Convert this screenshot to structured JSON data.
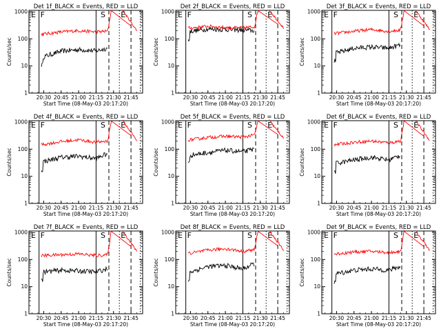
{
  "figure": {
    "title_suffix": "_BLACK = Events, RED = LLD",
    "xlabel": "Start Time (08-May-03 20:17:20)",
    "ylabel": "Counts/sec",
    "x_tick_labels": [
      "20:30",
      "20:45",
      "21:00",
      "21:15",
      "21:30",
      "21:45"
    ],
    "y_tick_labels": [
      "1",
      "10",
      "100",
      "1000"
    ],
    "markers": [
      "E",
      "F",
      "S",
      "E"
    ],
    "colors": {
      "events": "#000000",
      "lld": "#ff0000"
    }
  },
  "chart_data": [
    {
      "type": "line",
      "title": "Det 1f_BLACK = Events, RED = LLD",
      "ylabel": "Counts/sec",
      "xlabel": "Start Time (08-May-03 20:17:20)",
      "y_scale": "log",
      "ylim": [
        1,
        1000
      ],
      "series": [
        {
          "name": "Events",
          "color": "#000000",
          "x": [
            "20:30",
            "20:45",
            "21:00",
            "21:15",
            "21:25"
          ],
          "values": [
            22,
            35,
            40,
            36,
            45
          ]
        },
        {
          "name": "LLD",
          "color": "#ff0000",
          "x": [
            "20:30",
            "20:45",
            "21:00",
            "21:15",
            "21:25",
            "21:28",
            "21:45",
            "21:50"
          ],
          "values": [
            150,
            180,
            200,
            180,
            190,
            1100,
            300,
            200
          ]
        }
      ]
    },
    {
      "type": "line",
      "title": "Det 2f_BLACK = Events, RED = LLD",
      "ylabel": "Counts/sec",
      "xlabel": "Start Time (08-May-03 20:17:20)",
      "y_scale": "log",
      "ylim": [
        1,
        1000
      ],
      "series": [
        {
          "name": "Events",
          "color": "#000000",
          "x": [
            "20:30",
            "20:45",
            "21:00",
            "21:15",
            "21:25"
          ],
          "values": [
            190,
            230,
            220,
            210,
            200
          ]
        },
        {
          "name": "LLD",
          "color": "#ff0000",
          "x": [
            "20:30",
            "20:45",
            "21:00",
            "21:15",
            "21:25",
            "21:28",
            "21:45",
            "21:50"
          ],
          "values": [
            250,
            290,
            260,
            250,
            280,
            1100,
            350,
            250
          ]
        }
      ]
    },
    {
      "type": "line",
      "title": "Det 3f_BLACK = Events, RED = LLD",
      "ylabel": "Counts/sec",
      "xlabel": "Start Time (08-May-03 20:17:20)",
      "y_scale": "log",
      "ylim": [
        1,
        1000
      ],
      "series": [
        {
          "name": "Events",
          "color": "#000000",
          "x": [
            "20:30",
            "20:45",
            "21:00",
            "21:15",
            "21:25"
          ],
          "values": [
            30,
            45,
            50,
            45,
            60
          ]
        },
        {
          "name": "LLD",
          "color": "#ff0000",
          "x": [
            "20:30",
            "20:45",
            "21:00",
            "21:15",
            "21:25",
            "21:28",
            "21:45",
            "21:50"
          ],
          "values": [
            160,
            190,
            220,
            190,
            210,
            1100,
            300,
            220
          ]
        }
      ]
    },
    {
      "type": "line",
      "title": "Det 4f_BLACK = Events, RED = LLD",
      "ylabel": "Counts/sec",
      "xlabel": "Start Time (08-May-03 20:17:20)",
      "y_scale": "log",
      "ylim": [
        1,
        1000
      ],
      "series": [
        {
          "name": "Events",
          "color": "#000000",
          "x": [
            "20:30",
            "20:45",
            "21:00",
            "21:15",
            "21:25"
          ],
          "values": [
            35,
            50,
            55,
            45,
            70
          ]
        },
        {
          "name": "LLD",
          "color": "#ff0000",
          "x": [
            "20:30",
            "20:45",
            "21:00",
            "21:15",
            "21:25",
            "21:28",
            "21:45",
            "21:50"
          ],
          "values": [
            150,
            190,
            220,
            180,
            200,
            1100,
            320,
            210
          ]
        }
      ]
    },
    {
      "type": "line",
      "title": "Det 5f_BLACK = Events, RED = LLD",
      "ylabel": "Counts/sec",
      "xlabel": "Start Time (08-May-03 20:17:20)",
      "y_scale": "log",
      "ylim": [
        1,
        1000
      ],
      "series": [
        {
          "name": "Events",
          "color": "#000000",
          "x": [
            "20:30",
            "20:45",
            "21:00",
            "21:15",
            "21:25"
          ],
          "values": [
            60,
            75,
            90,
            80,
            100
          ]
        },
        {
          "name": "LLD",
          "color": "#ff0000",
          "x": [
            "20:30",
            "20:45",
            "21:00",
            "21:15",
            "21:25",
            "21:28",
            "21:45",
            "21:50"
          ],
          "values": [
            220,
            270,
            300,
            280,
            330,
            1100,
            350,
            250
          ]
        }
      ]
    },
    {
      "type": "line",
      "title": "Det 6f_BLACK = Events, RED = LLD",
      "ylabel": "Counts/sec",
      "xlabel": "Start Time (08-May-03 20:17:20)",
      "y_scale": "log",
      "ylim": [
        1,
        1000
      ],
      "series": [
        {
          "name": "Events",
          "color": "#000000",
          "x": [
            "20:30",
            "20:45",
            "21:00",
            "21:15",
            "21:25"
          ],
          "values": [
            30,
            40,
            50,
            40,
            60
          ]
        },
        {
          "name": "LLD",
          "color": "#ff0000",
          "x": [
            "20:30",
            "20:45",
            "21:00",
            "21:15",
            "21:25",
            "21:28",
            "21:45",
            "21:50"
          ],
          "values": [
            150,
            180,
            200,
            170,
            200,
            1100,
            300,
            210
          ]
        }
      ]
    },
    {
      "type": "line",
      "title": "Det 7f_BLACK = Events, RED = LLD",
      "ylabel": "Counts/sec",
      "xlabel": "Start Time (08-May-03 20:17:20)",
      "y_scale": "log",
      "ylim": [
        1,
        1000
      ],
      "series": [
        {
          "name": "Events",
          "color": "#000000",
          "x": [
            "20:30",
            "20:45",
            "21:00",
            "21:15",
            "21:25"
          ],
          "values": [
            35,
            40,
            38,
            35,
            45
          ]
        },
        {
          "name": "LLD",
          "color": "#ff0000",
          "x": [
            "20:30",
            "20:45",
            "21:00",
            "21:15",
            "21:25",
            "21:28",
            "21:45",
            "21:50"
          ],
          "values": [
            140,
            150,
            160,
            140,
            150,
            1100,
            300,
            200
          ]
        }
      ]
    },
    {
      "type": "line",
      "title": "Det 8f_BLACK = Events, RED = LLD",
      "ylabel": "Counts/sec",
      "xlabel": "Start Time (08-May-03 20:17:20)",
      "y_scale": "log",
      "ylim": [
        1,
        1000
      ],
      "series": [
        {
          "name": "Events",
          "color": "#000000",
          "x": [
            "20:30",
            "20:45",
            "21:00",
            "21:15",
            "21:25"
          ],
          "values": [
            35,
            55,
            60,
            45,
            70
          ]
        },
        {
          "name": "LLD",
          "color": "#ff0000",
          "x": [
            "20:30",
            "20:45",
            "21:00",
            "21:15",
            "21:25",
            "21:28",
            "21:45",
            "21:50"
          ],
          "values": [
            170,
            220,
            250,
            200,
            230,
            1100,
            320,
            220
          ]
        }
      ]
    },
    {
      "type": "line",
      "title": "Det 9f_BLACK = Events, RED = LLD",
      "ylabel": "Counts/sec",
      "xlabel": "Start Time (08-May-03 20:17:20)",
      "y_scale": "log",
      "ylim": [
        1,
        1000
      ],
      "series": [
        {
          "name": "Events",
          "color": "#000000",
          "x": [
            "20:30",
            "20:45",
            "21:00",
            "21:15",
            "21:25"
          ],
          "values": [
            30,
            40,
            45,
            40,
            55
          ]
        },
        {
          "name": "LLD",
          "color": "#ff0000",
          "x": [
            "20:30",
            "20:45",
            "21:00",
            "21:15",
            "21:25",
            "21:28",
            "21:45",
            "21:50"
          ],
          "values": [
            160,
            190,
            200,
            180,
            200,
            1100,
            300,
            220
          ]
        }
      ]
    }
  ]
}
